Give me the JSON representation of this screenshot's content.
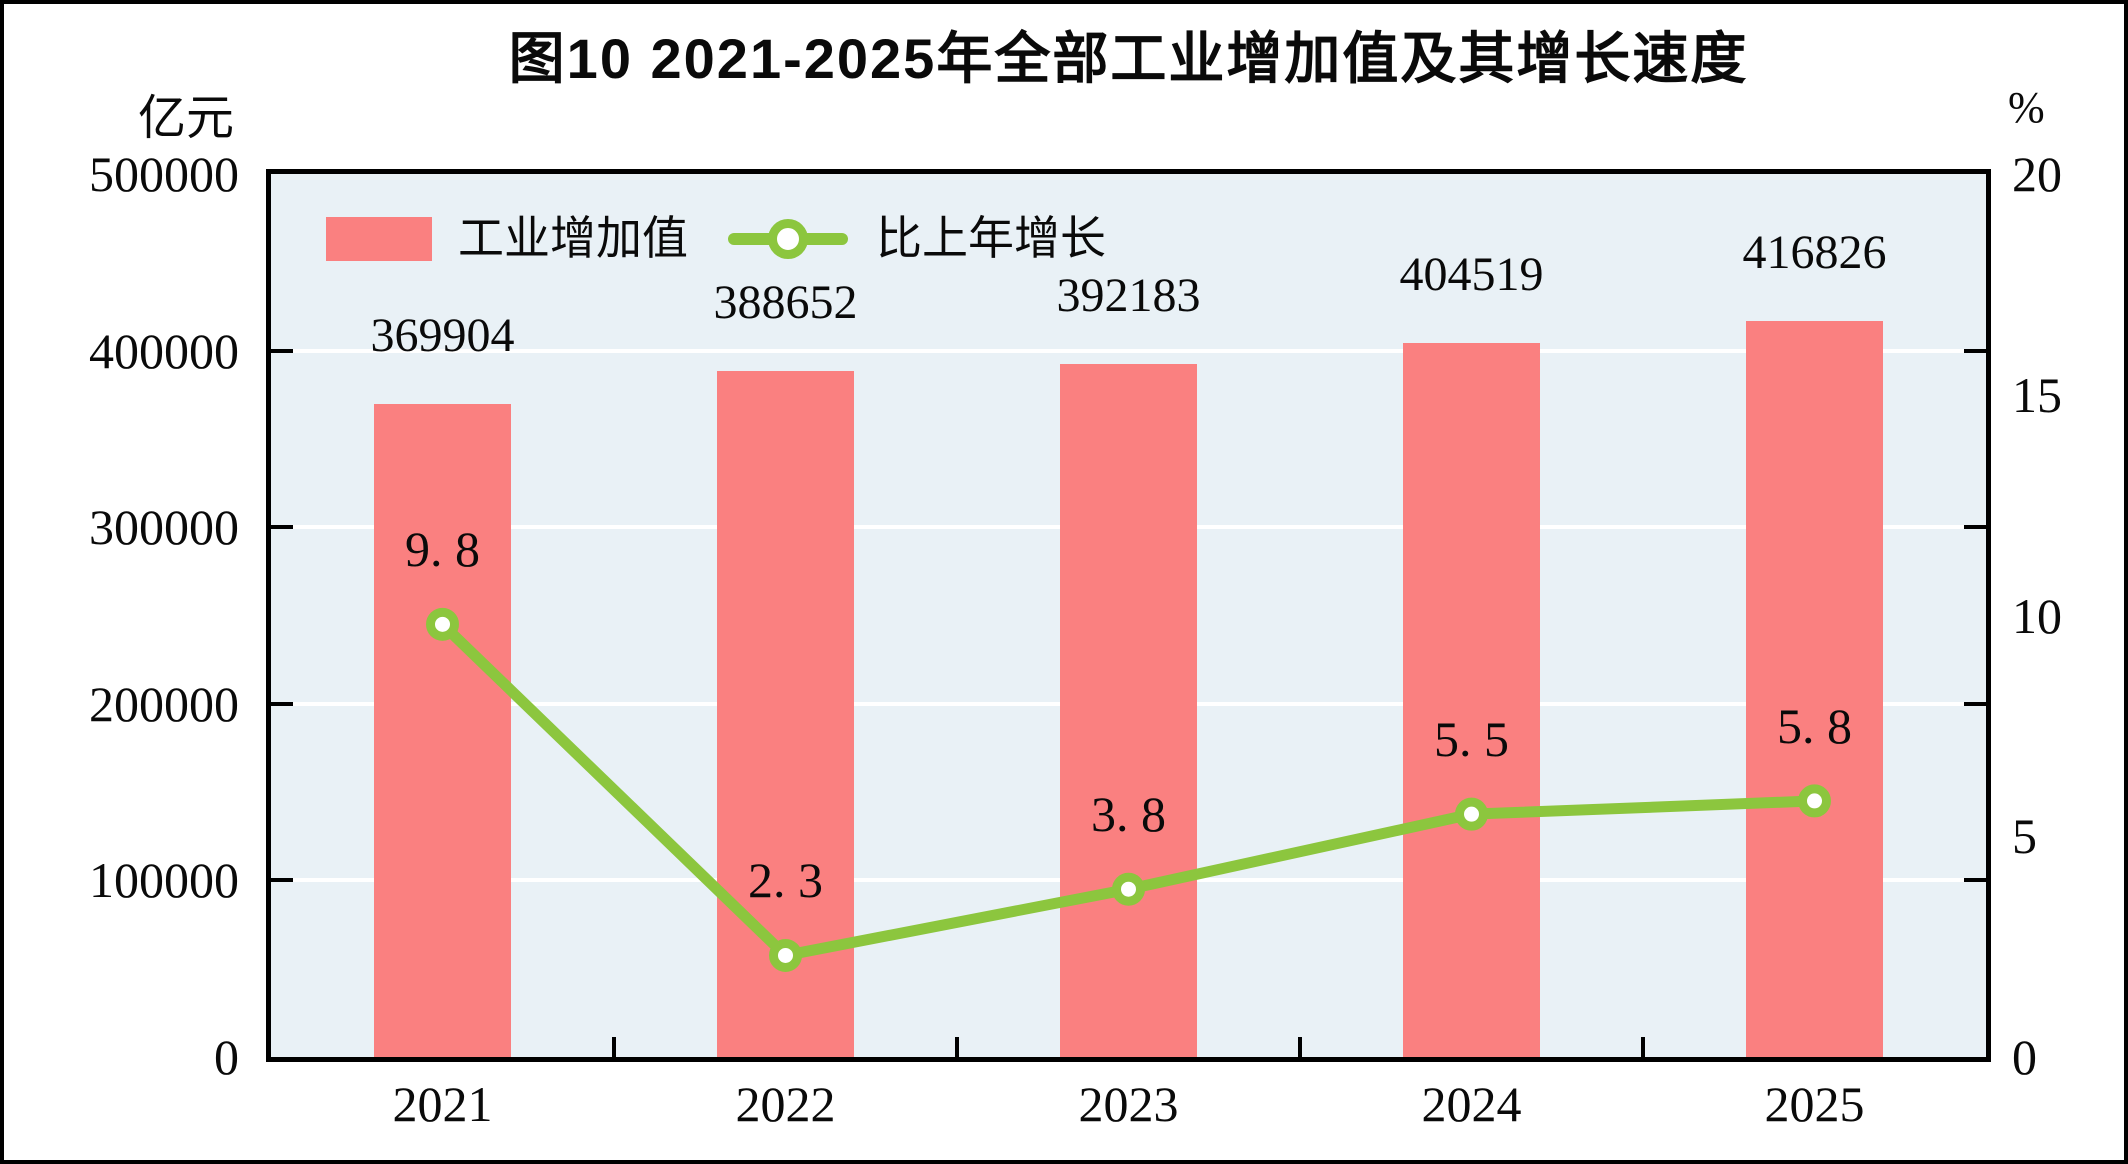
{
  "title": "图10  2021-2025年全部工业增加值及其增长速度",
  "left_axis": {
    "unit": "亿元",
    "tick_labels": [
      "500000",
      "400000",
      "300000",
      "200000",
      "100000",
      "0"
    ]
  },
  "right_axis": {
    "unit": "%",
    "tick_labels": [
      "20",
      "15",
      "10",
      "5",
      "0"
    ]
  },
  "legend": {
    "bar_label": "工业增加值",
    "line_label": "比上年增长"
  },
  "colors": {
    "bar": "#FA8080",
    "line": "#8CC63E",
    "marker_fill": "#FFFFFF",
    "plot_bg": "#E9F1F6",
    "grid": "#FFFFFF",
    "text": "#0A0A0A"
  },
  "chart_data": {
    "type": "bar+line",
    "categories": [
      "2021",
      "2022",
      "2023",
      "2024",
      "2025"
    ],
    "series": [
      {
        "name": "工业增加值",
        "type": "bar",
        "axis": "left",
        "values": [
          369904,
          388652,
          392183,
          404519,
          416826
        ],
        "labels": [
          "369904",
          "388652",
          "392183",
          "404519",
          "416826"
        ]
      },
      {
        "name": "比上年增长",
        "type": "line",
        "axis": "right",
        "values": [
          9.8,
          2.3,
          3.8,
          5.5,
          5.8
        ],
        "labels": [
          "9. 8",
          "2. 3",
          "3. 8",
          "5. 5",
          "5. 8"
        ]
      }
    ],
    "left_ylim": [
      0,
      500000
    ],
    "right_ylim": [
      0,
      20
    ],
    "left_axis_title": "亿元",
    "right_axis_title": "%",
    "grid": "horizontal white gridlines every 100000 (left axis) / 4% (right axis)",
    "legend_position": "top-left inside plot area"
  }
}
